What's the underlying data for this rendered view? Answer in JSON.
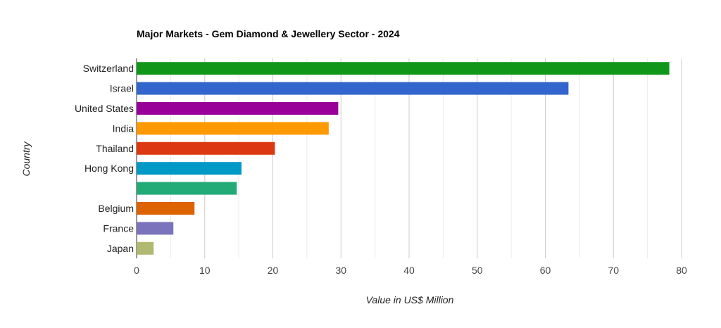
{
  "chart_data": {
    "type": "bar",
    "orientation": "horizontal",
    "title": "Major Markets - Gem Diamond & Jewellery Sector - 2024",
    "xlabel": "Value in US$ Million",
    "ylabel": "Country",
    "xlim": [
      0,
      80
    ],
    "xticks": [
      0,
      10,
      20,
      30,
      40,
      50,
      60,
      70,
      80
    ],
    "grid": true,
    "categories": [
      "Switzerland",
      "Israel",
      "United States",
      "India",
      "Thailand",
      "Hong Kong",
      "",
      "Belgium",
      "France",
      "Japan"
    ],
    "values": [
      78.2,
      63.4,
      29.6,
      28.2,
      20.3,
      15.4,
      14.7,
      8.5,
      5.4,
      2.5
    ],
    "colors": [
      "#109618",
      "#3366cc",
      "#990099",
      "#ff9900",
      "#dc3912",
      "#0099c6",
      "#22aa77",
      "#dd6200",
      "#7b73bb",
      "#b0b872"
    ]
  }
}
